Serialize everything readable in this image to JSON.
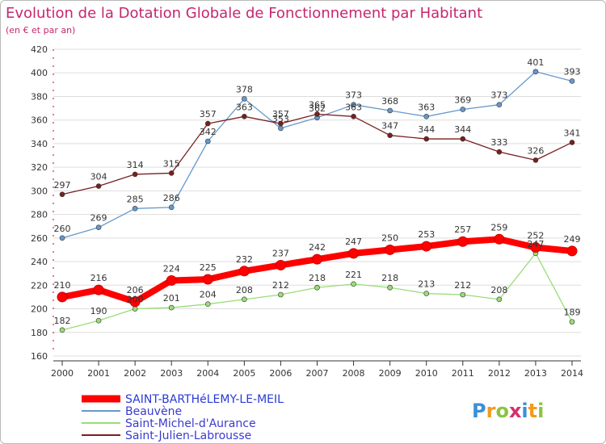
{
  "chart_data": {
    "type": "line",
    "title": "Evolution de la Dotation Globale de Fonctionnement par Habitant",
    "subtitle": "(en € et par an)",
    "xlabel": "",
    "ylabel": "",
    "x": [
      "2000",
      "2001",
      "2002",
      "2003",
      "2004",
      "2005",
      "2006",
      "2007",
      "2008",
      "2009",
      "2010",
      "2011",
      "2012",
      "2013",
      "2014"
    ],
    "ylim": [
      160,
      420
    ],
    "yticks": [
      160,
      180,
      200,
      220,
      240,
      260,
      280,
      300,
      320,
      340,
      360,
      380,
      400,
      420
    ],
    "grid": "horizontal",
    "series": [
      {
        "name": "SAINT-BARTHéLEMY-LE-MEIL",
        "color": "#ff0000",
        "values": [
          210,
          216,
          206,
          224,
          225,
          232,
          237,
          242,
          247,
          250,
          253,
          257,
          259,
          252,
          249
        ]
      },
      {
        "name": "Beauvène",
        "color": "#6699cc",
        "values": [
          260,
          269,
          285,
          286,
          342,
          378,
          353,
          362,
          373,
          368,
          363,
          369,
          373,
          401,
          393
        ]
      },
      {
        "name": "Saint-Michel-d'Aurance",
        "color": "#99dd77",
        "values": [
          182,
          190,
          200,
          201,
          204,
          208,
          212,
          218,
          221,
          218,
          213,
          212,
          208,
          247,
          189
        ]
      },
      {
        "name": "Saint-Julien-Labrousse",
        "color": "#7a1f1f",
        "values": [
          297,
          304,
          314,
          315,
          357,
          363,
          357,
          365,
          363,
          347,
          344,
          344,
          333,
          326,
          341
        ]
      }
    ],
    "legend_position": "bottom-left"
  },
  "brand": {
    "text": "Proxiti",
    "letter_colors": [
      "#3b8fd6",
      "#f39a1e",
      "#8ac43f",
      "#d62f6b",
      "#3b8fd6",
      "#f39a1e",
      "#8ac43f"
    ]
  }
}
